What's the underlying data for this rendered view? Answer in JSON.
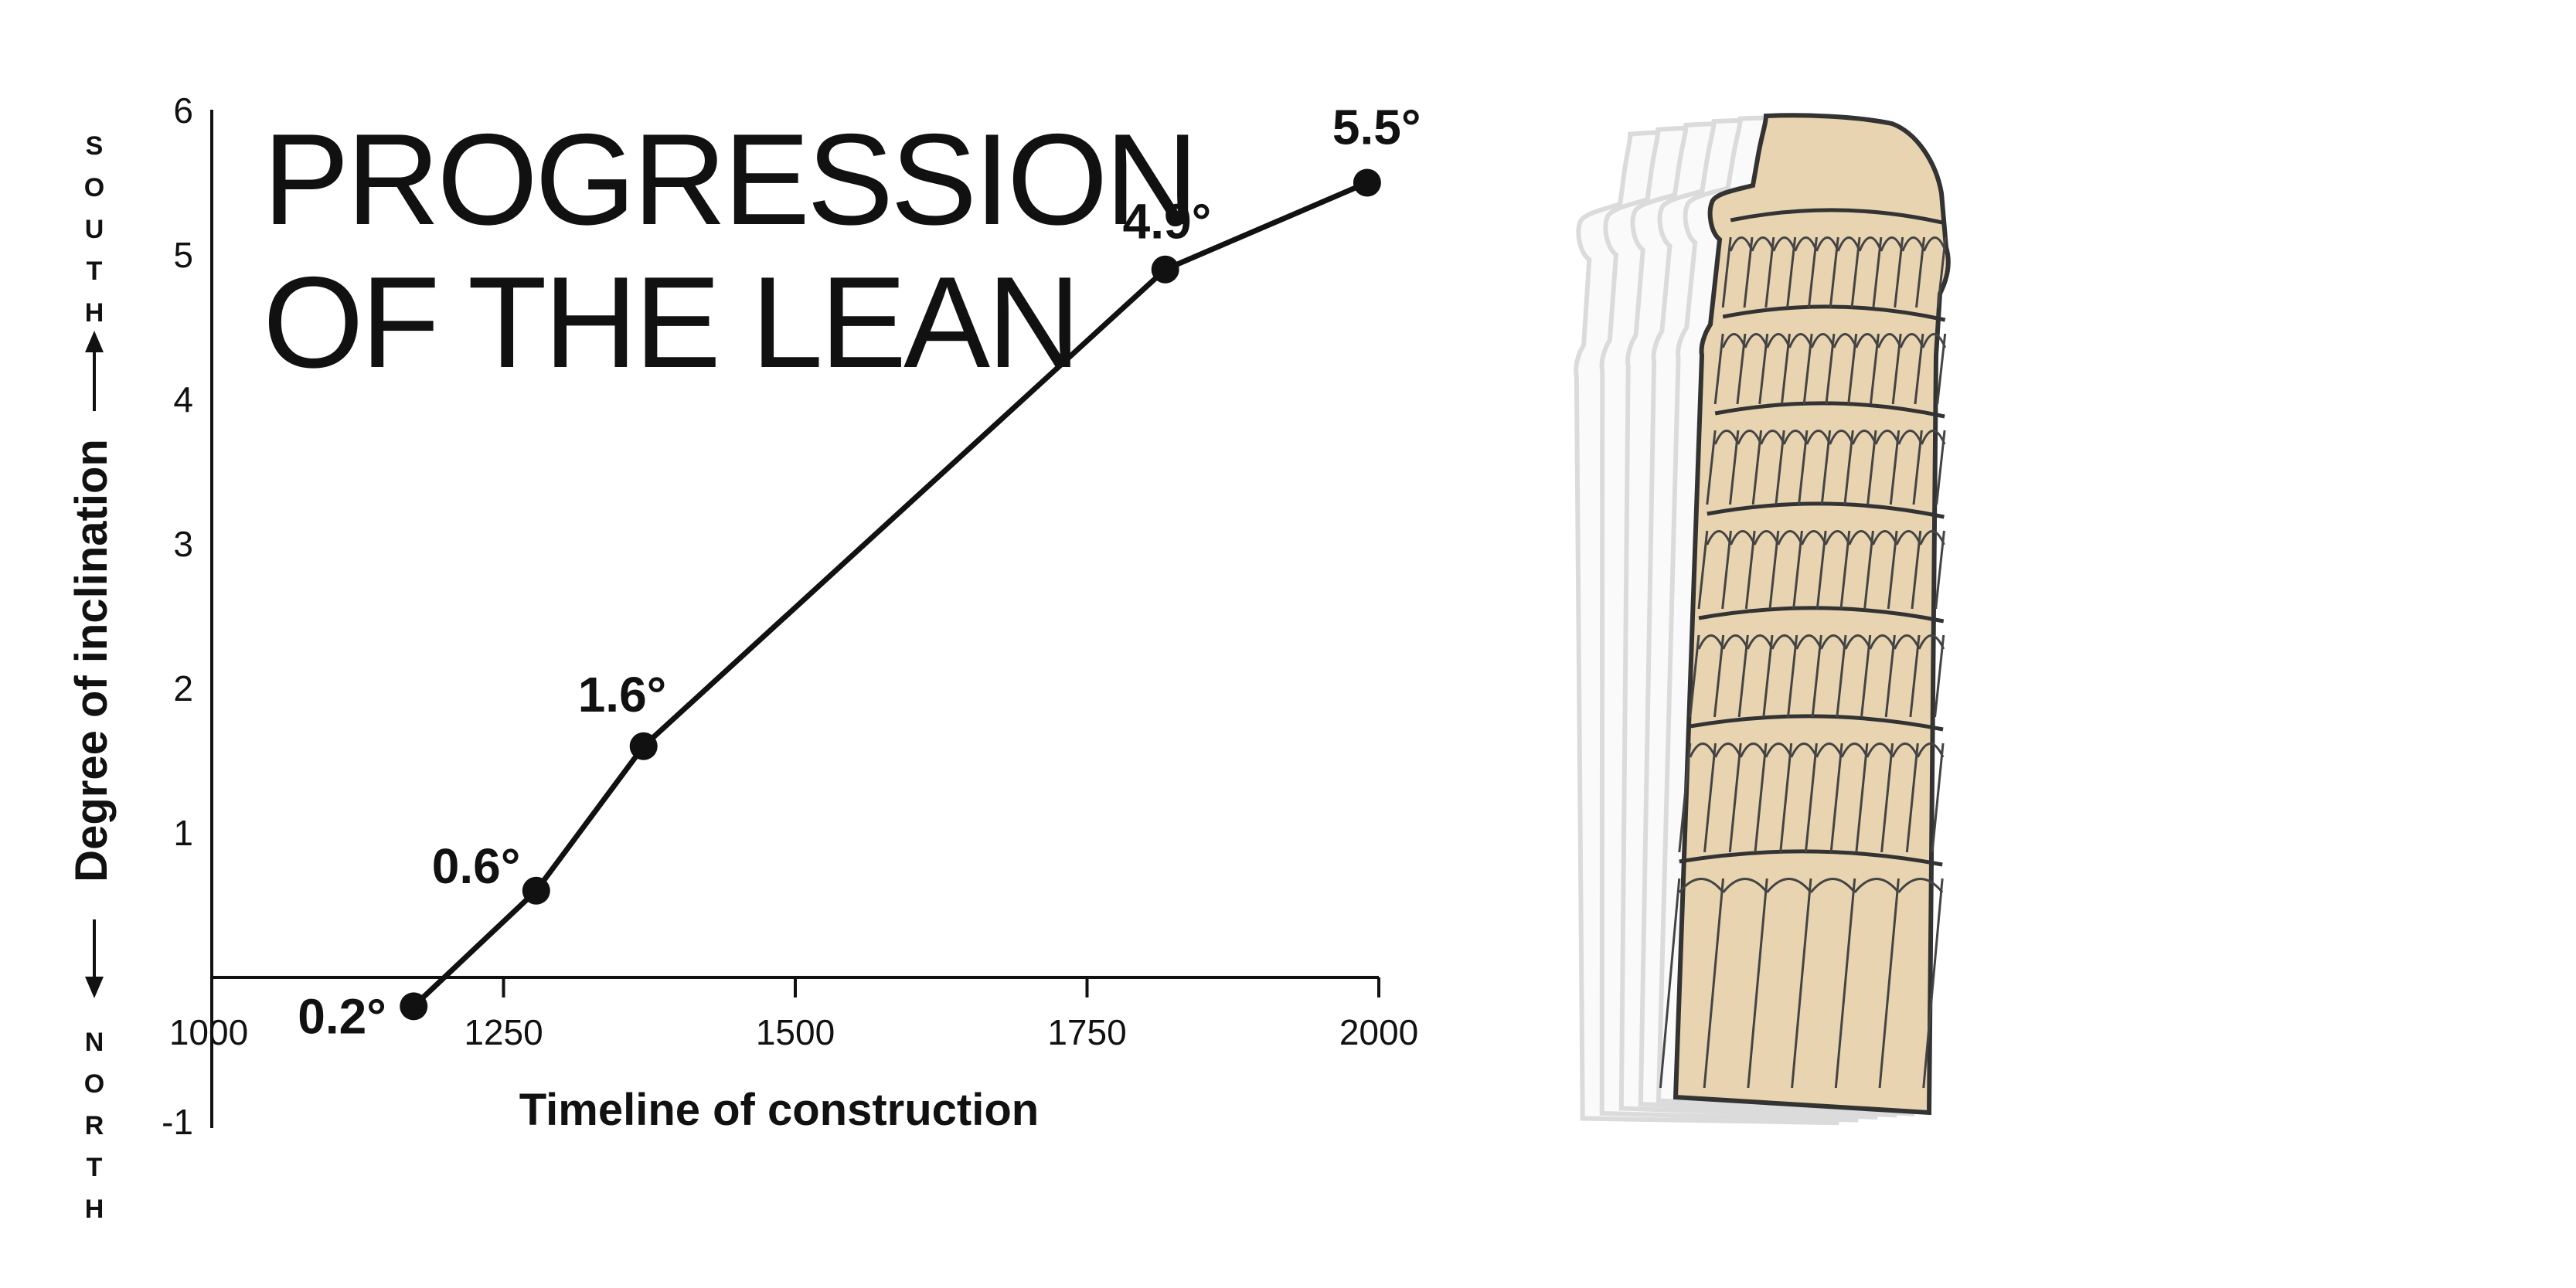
{
  "chart_data": {
    "type": "line",
    "title_lines": [
      "PROGRESSION",
      "OF THE LEAN"
    ],
    "xlabel": "Timeline of construction",
    "ylabel": "Degree of inclination",
    "direction_up": "SOUTH",
    "direction_down": "NORTH",
    "xlim": [
      1000,
      2000
    ],
    "ylim": [
      -1,
      6
    ],
    "x_ticks": [
      1000,
      1250,
      1500,
      1750,
      2000
    ],
    "y_ticks": [
      -1,
      1,
      2,
      3,
      4,
      5,
      6
    ],
    "series": [
      {
        "x": [
          1173,
          1278,
          1370,
          1817,
          1990
        ],
        "y": [
          -0.2,
          0.6,
          1.6,
          4.9,
          5.5
        ],
        "labels": [
          "0.2°",
          "0.6°",
          "1.6°",
          "4.9°",
          "5.5°"
        ]
      }
    ],
    "line_color": "#111111",
    "grid": false
  },
  "illustration": {
    "name": "leaning-tower",
    "fill_color": "#e8d4b0",
    "ghost_color": "#bdbdbd",
    "outline_color": "#333333"
  }
}
